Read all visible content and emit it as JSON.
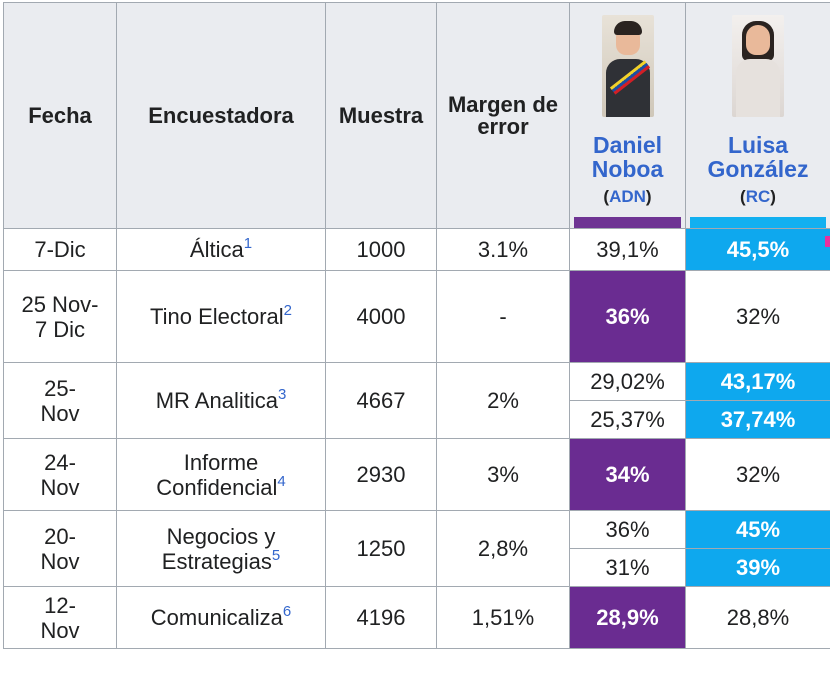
{
  "headers": {
    "fecha": "Fecha",
    "encuestadora": "Encuestadora",
    "muestra": "Muestra",
    "margen": "Margen de error"
  },
  "candidates": [
    {
      "name": "Daniel Noboa",
      "party": "ADN",
      "photo_icon": "candidate-photo-noboa",
      "color": "#6a2c91"
    },
    {
      "name": "Luisa González",
      "party": "RC",
      "photo_icon": "candidate-photo-gonzalez",
      "color": "#0ea8ee"
    }
  ],
  "rows": [
    {
      "fecha": "7-Dic",
      "encuestadora": "Áltica",
      "ref": "1",
      "muestra": "1000",
      "margen": "3.1%",
      "results": [
        {
          "noboa": "39,1%",
          "gonzalez": "45,5%",
          "winner": "gonzalez"
        }
      ]
    },
    {
      "fecha": "25 Nov-7 Dic",
      "encuestadora": "Tino Electoral",
      "ref": "2",
      "muestra": "4000",
      "margen": "-",
      "results": [
        {
          "noboa": "36%",
          "gonzalez": "32%",
          "winner": "noboa"
        }
      ]
    },
    {
      "fecha": "25-Nov",
      "encuestadora": "MR Analitica",
      "ref": "3",
      "muestra": "4667",
      "margen": "2%",
      "results": [
        {
          "noboa": "29,02%",
          "gonzalez": "43,17%",
          "winner": "gonzalez"
        },
        {
          "noboa": "25,37%",
          "gonzalez": "37,74%",
          "winner": "gonzalez"
        }
      ]
    },
    {
      "fecha": "24-Nov",
      "encuestadora": "Informe Confidencial",
      "ref": "4",
      "muestra": "2930",
      "margen": "3%",
      "results": [
        {
          "noboa": "34%",
          "gonzalez": "32%",
          "winner": "noboa"
        }
      ]
    },
    {
      "fecha": "20-Nov",
      "encuestadora": "Negocios y Estrategias",
      "ref": "5",
      "muestra": "1250",
      "margen": "2,8%",
      "results": [
        {
          "noboa": "36%",
          "gonzalez": "45%",
          "winner": "gonzalez"
        },
        {
          "noboa": "31%",
          "gonzalez": "39%",
          "winner": "gonzalez"
        }
      ]
    },
    {
      "fecha": "12-Nov",
      "encuestadora": "Comunicaliza",
      "ref": "6",
      "muestra": "4196",
      "margen": "1,51%",
      "results": [
        {
          "noboa": "28,9%",
          "gonzalez": "28,8%",
          "winner": "noboa"
        }
      ]
    }
  ]
}
